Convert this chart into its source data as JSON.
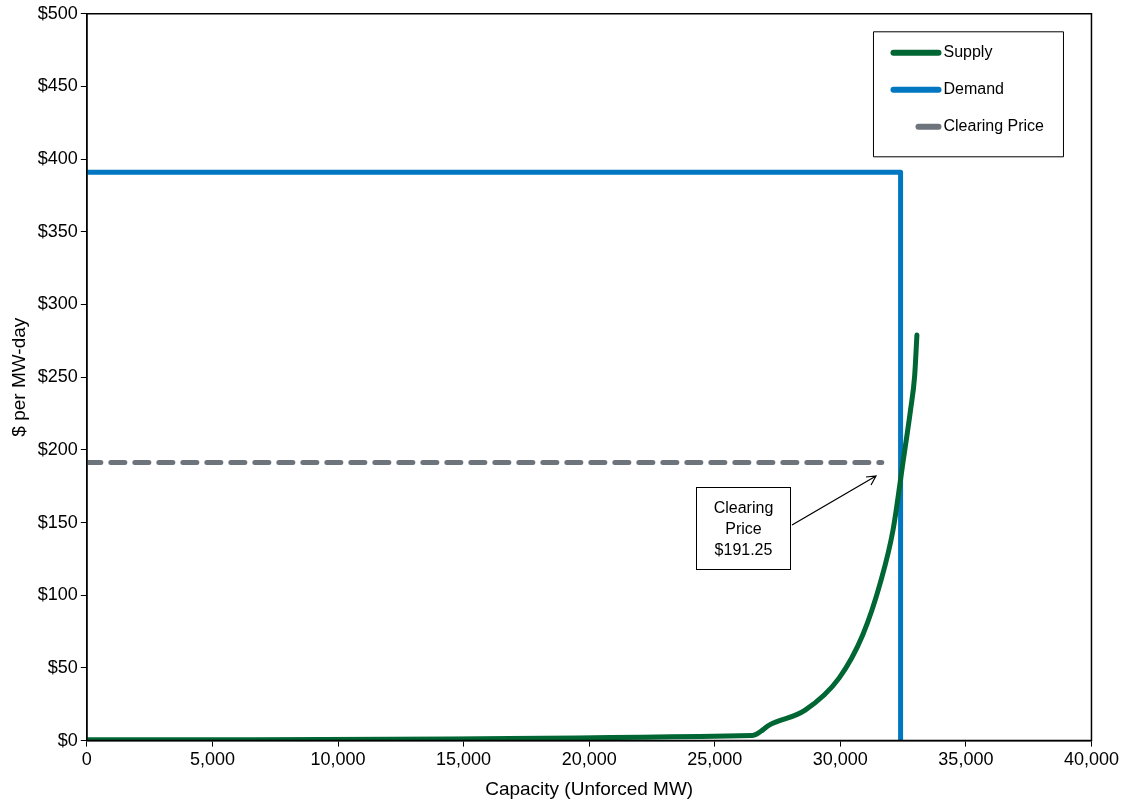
{
  "chart_data": {
    "type": "line",
    "xlabel": "Capacity (Unforced MW)",
    "ylabel": "$ per MW-day",
    "xlim": [
      0,
      40000
    ],
    "xticks": [
      {
        "value": 0,
        "label": "0"
      },
      {
        "value": 5000,
        "label": "5,000"
      },
      {
        "value": 10000,
        "label": "10,000"
      },
      {
        "value": 15000,
        "label": "15,000"
      },
      {
        "value": 20000,
        "label": "20,000"
      },
      {
        "value": 25000,
        "label": "25,000"
      },
      {
        "value": 30000,
        "label": "30,000"
      },
      {
        "value": 35000,
        "label": "35,000"
      },
      {
        "value": 40000,
        "label": "40,000"
      }
    ],
    "ylim": [
      0,
      500
    ],
    "yticks": [
      {
        "value": 0,
        "label": "$0"
      },
      {
        "value": 50,
        "label": "$50"
      },
      {
        "value": 100,
        "label": "$100"
      },
      {
        "value": 150,
        "label": "$150"
      },
      {
        "value": 200,
        "label": "$200"
      },
      {
        "value": 250,
        "label": "$250"
      },
      {
        "value": 300,
        "label": "$300"
      },
      {
        "value": 350,
        "label": "$350"
      },
      {
        "value": 400,
        "label": "$400"
      },
      {
        "value": 450,
        "label": "$450"
      },
      {
        "value": 500,
        "label": "$500"
      }
    ],
    "grid": false,
    "legend": "top right",
    "marker": "none",
    "series": [
      {
        "name": "Supply",
        "color": "#006633",
        "x": [
          0,
          26500,
          27200,
          28600,
          29950,
          30900,
          31600,
          32100,
          32500,
          32800,
          32960,
          33050
        ],
        "values": [
          0.5,
          3.5,
          11,
          21,
          43,
          73,
          109,
          145,
          192,
          228,
          251,
          279
        ]
      },
      {
        "name": "Demand",
        "color": "#0077c0",
        "x": [
          0,
          32400,
          32400
        ],
        "values": [
          391,
          391,
          0
        ]
      },
      {
        "name": "Clearing Price",
        "color": "#6d747c",
        "line_style": "dashed",
        "x": [
          0,
          31650
        ],
        "values": [
          191.25,
          191.25
        ]
      }
    ],
    "annotations": [
      "Clearing\nPrice\n$191.25"
    ]
  }
}
